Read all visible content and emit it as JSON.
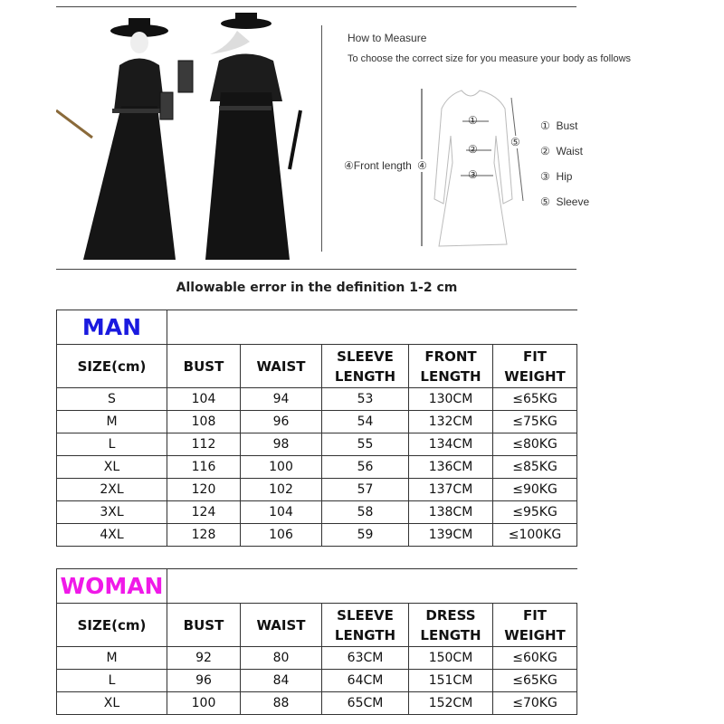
{
  "measure": {
    "title": "How to Measure",
    "subtitle": "To choose the correct size for you measure your body as follows",
    "front_length": "④Front length",
    "marks": [
      "①",
      "②",
      "③",
      "④",
      "⑤"
    ],
    "legend": [
      {
        "num": "①",
        "label": "Bust"
      },
      {
        "num": "②",
        "label": "Waist"
      },
      {
        "num": "③",
        "label": "Hip"
      },
      {
        "num": "⑤",
        "label": "Sleeve"
      }
    ]
  },
  "note": "Allowable error in the definition 1-2 cm",
  "man": {
    "title": "MAN",
    "title_color": "#1a1adf",
    "headers": [
      "SIZE(cm)",
      "BUST",
      "WAIST",
      "SLEEVE\nLENGTH",
      "FRONT\nLENGTH",
      "FIT\nWEIGHT"
    ],
    "rows": [
      [
        "S",
        "104",
        "94",
        "53",
        "130CM",
        "≤65KG"
      ],
      [
        "M",
        "108",
        "96",
        "54",
        "132CM",
        "≤75KG"
      ],
      [
        "L",
        "112",
        "98",
        "55",
        "134CM",
        "≤80KG"
      ],
      [
        "XL",
        "116",
        "100",
        "56",
        "136CM",
        "≤85KG"
      ],
      [
        "2XL",
        "120",
        "102",
        "57",
        "137CM",
        "≤90KG"
      ],
      [
        "3XL",
        "124",
        "104",
        "58",
        "138CM",
        "≤95KG"
      ],
      [
        "4XL",
        "128",
        "106",
        "59",
        "139CM",
        "≤100KG"
      ]
    ]
  },
  "woman": {
    "title": "WOMAN",
    "title_color": "#f019e8",
    "headers": [
      "SIZE(cm)",
      "BUST",
      "WAIST",
      "SLEEVE\nLENGTH",
      "DRESS\nLENGTH",
      "FIT\nWEIGHT"
    ],
    "rows": [
      [
        "M",
        "92",
        "80",
        "63CM",
        "150CM",
        "≤60KG"
      ],
      [
        "L",
        "96",
        "84",
        "64CM",
        "151CM",
        "≤65KG"
      ],
      [
        "XL",
        "100",
        "88",
        "65CM",
        "152CM",
        "≤70KG"
      ]
    ]
  }
}
